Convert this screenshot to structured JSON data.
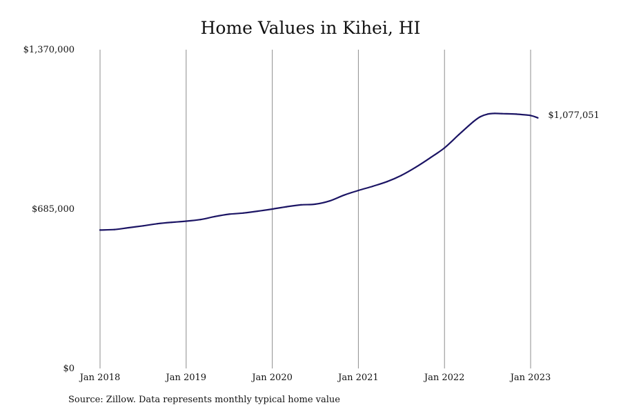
{
  "chart_data": {
    "type": "line",
    "title": "Home Values in Kihei, HI",
    "xlabel": "",
    "ylabel": "",
    "ylim": [
      0,
      1370000
    ],
    "y_ticks": [
      {
        "value": 0,
        "label": "$0"
      },
      {
        "value": 685000,
        "label": "$685,000"
      },
      {
        "value": 1370000,
        "label": "$1,370,000"
      }
    ],
    "x_ticks": [
      {
        "value": "2018-01",
        "label": "Jan 2018"
      },
      {
        "value": "2019-01",
        "label": "Jan 2019"
      },
      {
        "value": "2020-01",
        "label": "Jan 2020"
      },
      {
        "value": "2021-01",
        "label": "Jan 2021"
      },
      {
        "value": "2022-01",
        "label": "Jan 2022"
      },
      {
        "value": "2023-01",
        "label": "Jan 2023"
      }
    ],
    "grid": {
      "vertical": true,
      "horizontal": false
    },
    "series": [
      {
        "color": "#1b1464",
        "end_label": "$1,077,051",
        "points": [
          {
            "x": "2018-01",
            "y": 595000
          },
          {
            "x": "2018-03",
            "y": 597000
          },
          {
            "x": "2018-05",
            "y": 605000
          },
          {
            "x": "2018-07",
            "y": 613000
          },
          {
            "x": "2018-09",
            "y": 622000
          },
          {
            "x": "2018-11",
            "y": 628000
          },
          {
            "x": "2019-01",
            "y": 633000
          },
          {
            "x": "2019-03",
            "y": 640000
          },
          {
            "x": "2019-05",
            "y": 653000
          },
          {
            "x": "2019-07",
            "y": 663000
          },
          {
            "x": "2019-09",
            "y": 668000
          },
          {
            "x": "2019-11",
            "y": 676000
          },
          {
            "x": "2020-01",
            "y": 685000
          },
          {
            "x": "2020-03",
            "y": 695000
          },
          {
            "x": "2020-05",
            "y": 703000
          },
          {
            "x": "2020-07",
            "y": 706000
          },
          {
            "x": "2020-09",
            "y": 720000
          },
          {
            "x": "2020-11",
            "y": 745000
          },
          {
            "x": "2021-01",
            "y": 765000
          },
          {
            "x": "2021-03",
            "y": 783000
          },
          {
            "x": "2021-05",
            "y": 803000
          },
          {
            "x": "2021-07",
            "y": 830000
          },
          {
            "x": "2021-09",
            "y": 865000
          },
          {
            "x": "2021-11",
            "y": 905000
          },
          {
            "x": "2022-01",
            "y": 948000
          },
          {
            "x": "2022-03",
            "y": 1005000
          },
          {
            "x": "2022-05",
            "y": 1060000
          },
          {
            "x": "2022-06",
            "y": 1082000
          },
          {
            "x": "2022-07",
            "y": 1093000
          },
          {
            "x": "2022-08",
            "y": 1096000
          },
          {
            "x": "2022-09",
            "y": 1095000
          },
          {
            "x": "2022-11",
            "y": 1093000
          },
          {
            "x": "2023-01",
            "y": 1087000
          },
          {
            "x": "2023-02",
            "y": 1077051
          }
        ]
      }
    ]
  },
  "source_note": "Source: Zillow. Data represents monthly typical home value"
}
